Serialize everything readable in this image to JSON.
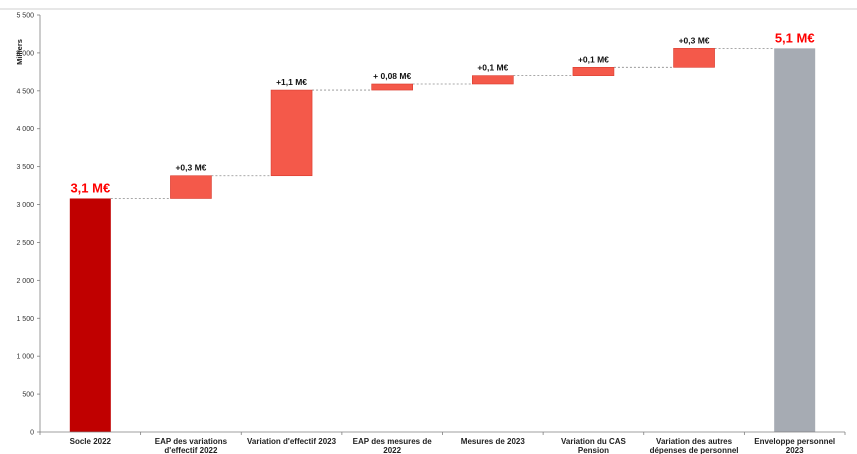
{
  "chart_data": {
    "type": "bar",
    "subtype": "waterfall",
    "ylabel": "Milliers",
    "ylim": [
      0,
      5500
    ],
    "y_ticks": [
      "0",
      "500",
      "1 000",
      "1 500",
      "2 000",
      "2 500",
      "3 000",
      "3 500",
      "4 000",
      "4 500",
      "5 000",
      "5 500"
    ],
    "y_tick_values": [
      0,
      500,
      1000,
      1500,
      2000,
      2500,
      3000,
      3500,
      4000,
      4500,
      5000,
      5500
    ],
    "grid": false,
    "legend": "none",
    "categories": [
      "Socle 2022",
      "EAP des variations d'effectif 2022",
      "Variation d'effectif 2023",
      "EAP des mesures de 2022",
      "Mesures de 2023",
      "Variation du CAS Pension",
      "Variation des autres dépenses de personnel",
      "Enveloppe personnel 2023"
    ],
    "bars": [
      {
        "kind": "total",
        "start": 0,
        "end": 3080,
        "label": "3,1 M€"
      },
      {
        "kind": "delta",
        "start": 3080,
        "end": 3380,
        "label": "+0,3 M€"
      },
      {
        "kind": "delta",
        "start": 3380,
        "end": 4510,
        "label": "+1,1 M€"
      },
      {
        "kind": "delta",
        "start": 4510,
        "end": 4590,
        "label": "+ 0,08 M€"
      },
      {
        "kind": "delta",
        "start": 4590,
        "end": 4700,
        "label": "+0,1 M€"
      },
      {
        "kind": "delta",
        "start": 4700,
        "end": 4810,
        "label": "+0,1 M€"
      },
      {
        "kind": "delta",
        "start": 4810,
        "end": 5060,
        "label": "+0,3 M€"
      },
      {
        "kind": "total",
        "start": 0,
        "end": 5060,
        "label": "5,1 M€"
      }
    ],
    "colors": {
      "start_total": "#c00000",
      "delta": "#f4594a",
      "end_total": "#a6abb3",
      "total_label": "#ff0000",
      "connector": "#8c8c8c",
      "axis": "#7f7f7f"
    }
  }
}
